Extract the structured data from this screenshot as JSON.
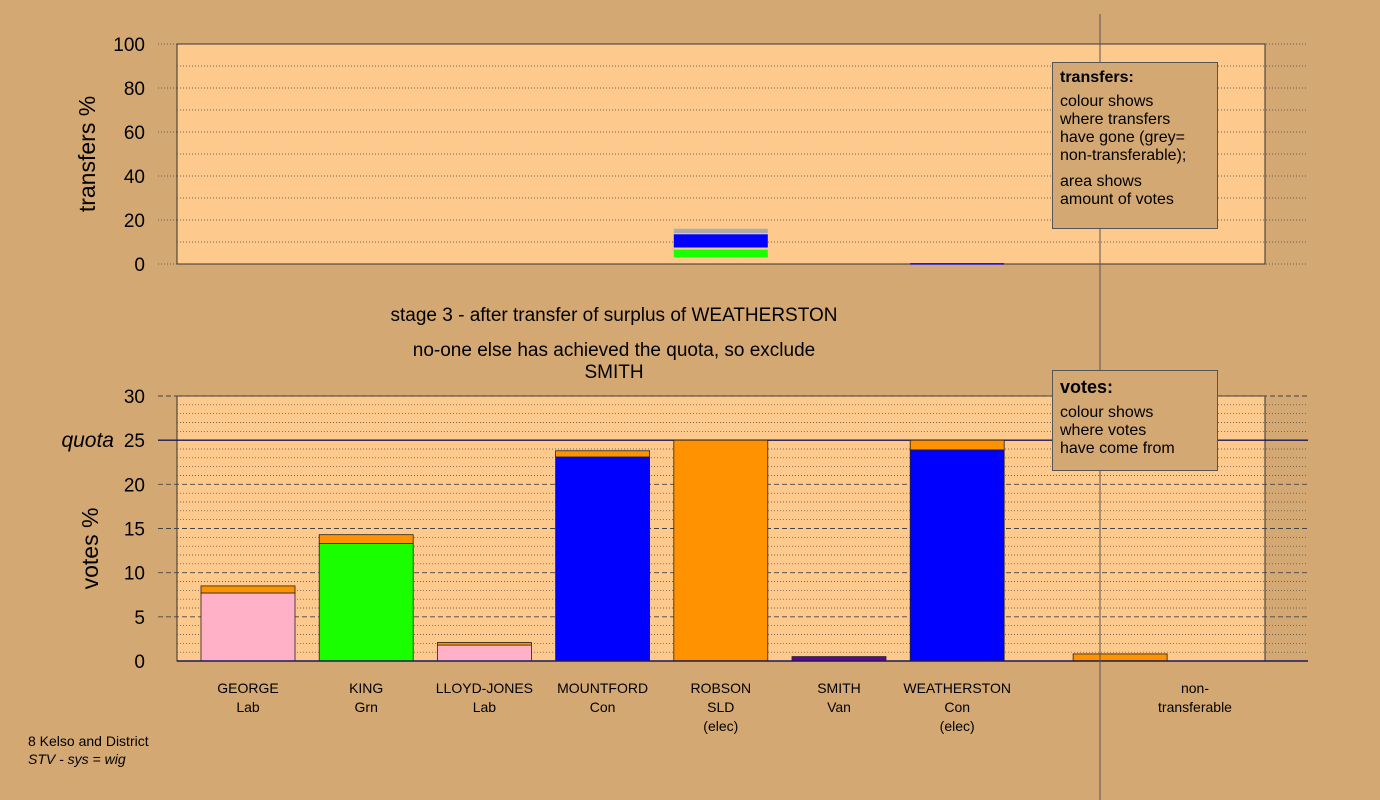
{
  "title": {
    "line1": "stage 3 - after transfer of surplus of WEATHERSTON",
    "line2": "no-one else has achieved the quota, so exclude SMITH"
  },
  "footer": {
    "ward": "8 Kelso and District",
    "system": "STV - sys = wig"
  },
  "legends": {
    "transfers": {
      "title": "transfers:",
      "lines1": [
        "colour shows",
        "where transfers",
        "have gone (grey=",
        "non-transferable);"
      ],
      "lines2": [
        "area shows",
        "amount of votes"
      ]
    },
    "votes": {
      "title": "votes:",
      "lines": [
        "colour shows",
        "where votes",
        "have come from"
      ]
    }
  },
  "colors": {
    "background": "#d4a872",
    "plot_bg": "#fec98c",
    "Lab": "#ffb1c8",
    "Grn": "#1aff00",
    "Con": "#0000ff",
    "SLD": "#ff9200",
    "Van": "#660099",
    "nontransferable": "#aaaaaa"
  },
  "chart_data": [
    {
      "type": "bar",
      "name": "transfers",
      "ylabel": "transfers %",
      "ylim": [
        0,
        100
      ],
      "yticks": [
        0,
        20,
        40,
        60,
        80,
        100
      ],
      "grid": "dotted",
      "bars": [
        {
          "candidate": "ROBSON",
          "segments": [
            {
              "party": "Grn",
              "from": 3,
              "to": 6.5
            },
            {
              "party": "Con",
              "from": 7.5,
              "to": 13.5
            },
            {
              "party": "nontransferable",
              "from": 14,
              "to": 16
            }
          ]
        },
        {
          "candidate": "WEATHERSTON",
          "segments": [
            {
              "party": "Con",
              "from": 0,
              "to": 0.4
            }
          ]
        }
      ]
    },
    {
      "type": "bar",
      "name": "votes",
      "ylabel": "votes %",
      "ylim": [
        0,
        30
      ],
      "yticks": [
        0,
        5,
        10,
        15,
        20,
        25,
        30
      ],
      "quota": 25,
      "quota_label": "quota",
      "grid": "dotted minor, dashed major",
      "categories": [
        {
          "name": "GEORGE",
          "party": "Lab",
          "note": "",
          "base": 7.7,
          "top": 8.5,
          "base_party": "Lab"
        },
        {
          "name": "KING",
          "party": "Grn",
          "note": "",
          "base": 13.3,
          "top": 14.3,
          "base_party": "Grn"
        },
        {
          "name": "LLOYD-JONES",
          "party": "Lab",
          "note": "",
          "base": 1.8,
          "top": 2.1,
          "base_party": "Lab"
        },
        {
          "name": "MOUNTFORD",
          "party": "Con",
          "note": "",
          "base": 23.1,
          "top": 23.8,
          "base_party": "Con"
        },
        {
          "name": "ROBSON",
          "party": "SLD",
          "note": "(elec)",
          "base": 25.0,
          "top": 25.0,
          "base_party": "SLD"
        },
        {
          "name": "SMITH",
          "party": "Van",
          "note": "",
          "base": 0.5,
          "top": 0.5,
          "base_party": "Van"
        },
        {
          "name": "WEATHERSTON",
          "party": "Con",
          "note": "(elec)",
          "base": 23.9,
          "top": 25.0,
          "base_party": "Con"
        },
        {
          "name": "non-",
          "party": "transferable",
          "note": "",
          "base": 0,
          "top": 0.8,
          "base_party": "SLD"
        }
      ],
      "transfer_color": "SLD"
    }
  ]
}
